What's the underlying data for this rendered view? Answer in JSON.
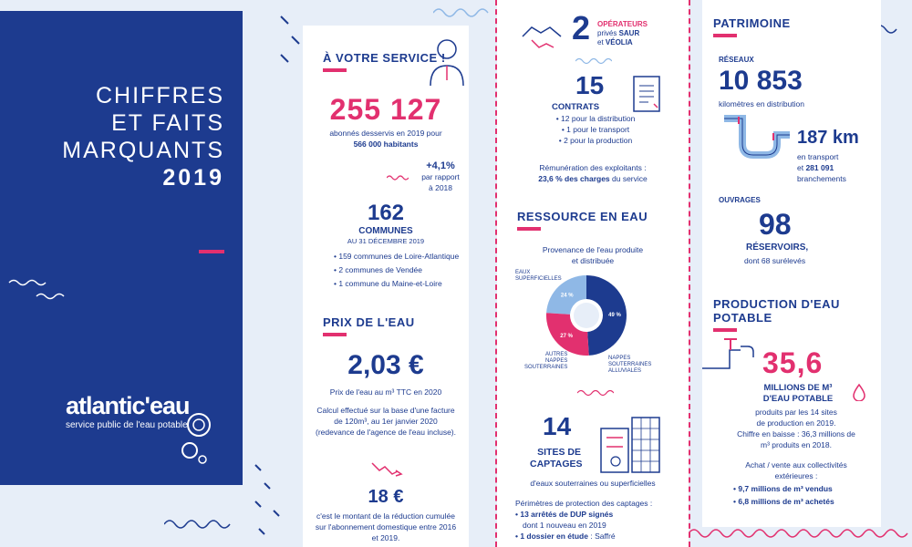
{
  "left": {
    "title_line1": "CHIFFRES",
    "title_line2": "ET FAITS",
    "title_line3": "MARQUANTS",
    "year": "2019",
    "logo_word": "atlantic'eau",
    "logo_sub": "service public de l'eau potable"
  },
  "service": {
    "title": "À VOTRE SERVICE !",
    "subscribers": "255 127",
    "subscribers_text": "abonnés desservis en 2019 pour",
    "inhabitants": "566 000 habitants",
    "growth": "+4,1%",
    "growth_note1": "par rapport",
    "growth_note2": "à 2018",
    "communes_count": "162",
    "communes_label": "COMMUNES",
    "communes_date": "AU 31 DÉCEMBRE 2019",
    "communes_items": [
      "• 159 communes de Loire-Atlantique",
      "• 2 communes de Vendée",
      "• 1 commune du Maine-et-Loire"
    ]
  },
  "prix": {
    "title": "PRIX DE L'EAU",
    "price": "2,03 €",
    "price_text": "Prix de l'eau au m³ TTC en 2020",
    "calc_text": "Calcul effectué sur la base d'une facture de 120m³, au 1er janvier 2020 (redevance de l'agence de l'eau incluse).",
    "reduction": "18 €",
    "reduction_text": "c'est le montant de la réduction cumulée sur l'abonnement domestique entre 2016 et 2019."
  },
  "operateurs": {
    "count": "2",
    "label1": "OPÉRATEURS",
    "label2_pre": "privés ",
    "label2_bold": "SAUR",
    "label3_pre": "et ",
    "label3_bold": "VÉOLIA",
    "contracts_count": "15",
    "contracts_label": "CONTRATS",
    "contracts_items": [
      "• 12 pour la distribution",
      "• 1 pour le transport",
      "• 2 pour la production"
    ],
    "remun_text": "Rémunération des exploitants :",
    "remun_bold": "23,6 % des charges",
    "remun_end": " du service"
  },
  "ressource": {
    "title": "RESSOURCE EN EAU",
    "chart_title1": "Provenance de l'eau produite",
    "chart_title2": "et distribuée",
    "label_surface1": "EAUX",
    "label_surface2": "SUPERFICIELLES",
    "label_autres1": "AUTRES",
    "label_autres2": "NAPPES",
    "label_autres3": "SOUTERRAINES",
    "label_alluv1": "NAPPES",
    "label_alluv2": "SOUTERRAINES",
    "label_alluv3": "ALLUVIALES",
    "captages_count": "14",
    "captages_label1": "SITES DE",
    "captages_label2": "CAPTAGES",
    "captages_text": "d'eaux souterraines ou superficielles",
    "perimetres_title": "Périmètres de protection des captages :",
    "dup_bold": "• 13 arrêtés de DUP signés",
    "dup_text": "dont 1 nouveau en 2019",
    "etude_bold": "• 1 dossier en étude",
    "etude_text": " : Saffré"
  },
  "chart_data": {
    "type": "pie",
    "title": "Provenance de l'eau produite et distribuée",
    "categories": [
      "EAUX SUPERFICIELLES",
      "NAPPES SOUTERRAINES ALLUVIALES",
      "AUTRES NAPPES SOUTERRAINES"
    ],
    "values": [
      24,
      49,
      27
    ],
    "labels": [
      "24 %",
      "49 %",
      "27 %"
    ],
    "colors": [
      "#8fb8e6",
      "#1d3b8f",
      "#e2306f"
    ]
  },
  "patrimoine": {
    "title": "PATRIMOINE",
    "reseaux": "RÉSEAUX",
    "km_distribution": "10 853",
    "km_distribution_text": "kilomètres en distribution",
    "km_transport": "187 km",
    "km_transport_text": "en transport",
    "branchements_pre": "et ",
    "branchements_bold": "281 091",
    "branchements_text": "branchements",
    "ouvrages": "OUVRAGES",
    "reservoirs_count": "98",
    "reservoirs_label": "RÉSERVOIRS,",
    "reservoirs_text": "dont 68 surélevés"
  },
  "production": {
    "title": "PRODUCTION D'EAU POTABLE",
    "volume": "35,6",
    "volume_label1": "MILLIONS DE M³",
    "volume_label2": "D'EAU POTABLE",
    "volume_text1": "produits par les 14 sites",
    "volume_text2": "de production en 2019.",
    "volume_text3": "Chiffre en baisse : 36,3 millions de",
    "volume_text4": "m³ produits en 2018.",
    "achat_text1": "Achat / vente aux collectivités",
    "achat_text2": "extérieures :",
    "vendus": "• 9,7 millions de m³ vendus",
    "achetes": "• 6,8 millions de m³ achetés"
  }
}
